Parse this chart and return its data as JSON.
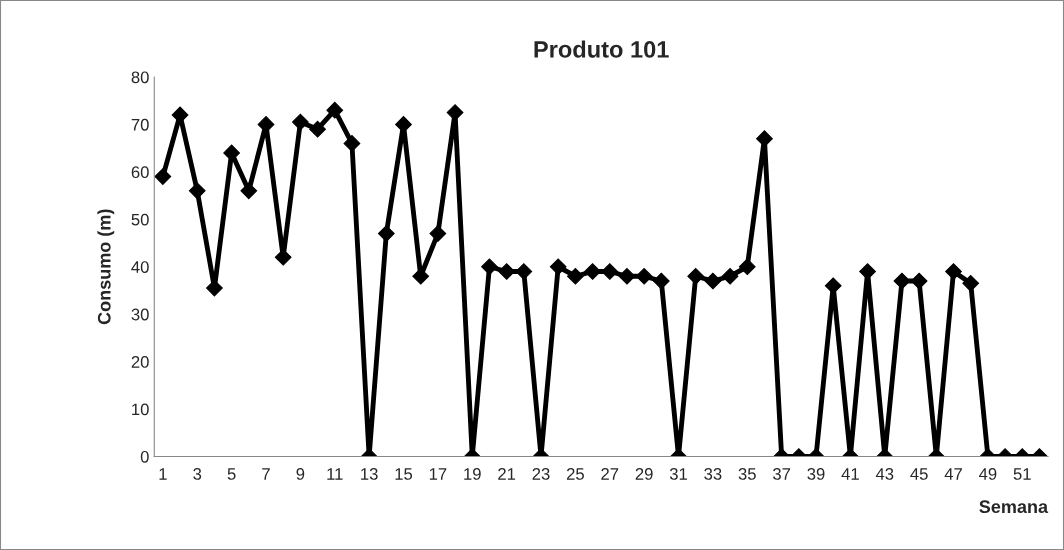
{
  "chart_data": {
    "type": "line",
    "title": "Produto 101",
    "xlabel": "Semana",
    "ylabel": "Consumo (m)",
    "categories": [
      "1",
      null,
      "3",
      null,
      "5",
      null,
      "7",
      null,
      "9",
      null,
      "11",
      null,
      "13",
      null,
      "15",
      null,
      "17",
      null,
      "19",
      null,
      "21",
      null,
      "23",
      null,
      "25",
      null,
      "27",
      null,
      "29",
      null,
      "31",
      null,
      "33",
      null,
      "35",
      null,
      "37",
      null,
      "39",
      null,
      "41",
      null,
      "43",
      null,
      "45",
      null,
      "47",
      null,
      "49",
      null,
      "51",
      null
    ],
    "series": [
      {
        "color": "#000000",
        "values": [
          59,
          72,
          56,
          35.5,
          64,
          56,
          70,
          42,
          70.5,
          69,
          73,
          66,
          0,
          47,
          70,
          38,
          47,
          72.5,
          0,
          40,
          39,
          39,
          0,
          40,
          38,
          39,
          39,
          38,
          38,
          37,
          0,
          38,
          37,
          38,
          40,
          67,
          0,
          0,
          0,
          36,
          0,
          39,
          0,
          37,
          37,
          0,
          39,
          36.5,
          0,
          0,
          0,
          0
        ]
      }
    ],
    "ylim": [
      0,
      80
    ],
    "yticks": [
      0,
      10,
      20,
      30,
      40,
      50,
      60,
      70,
      80
    ],
    "grid": false,
    "marker": "diamond",
    "line_style": "solid"
  }
}
